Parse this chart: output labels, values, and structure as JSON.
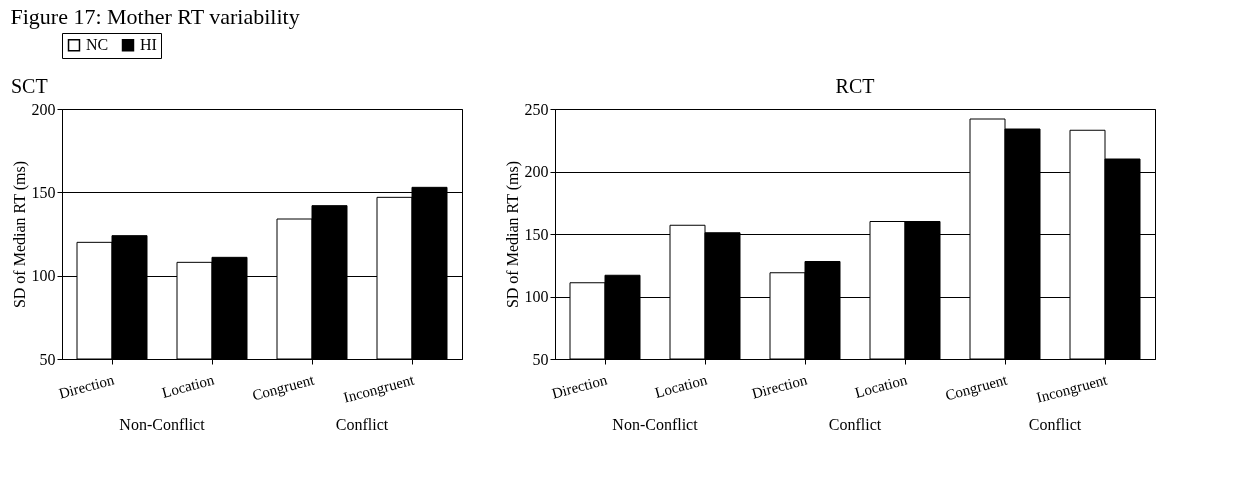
{
  "chart_data": [
    {
      "type": "bar",
      "title": "Figure 17: Mother RT variability",
      "subtitle": "SCT",
      "ylabel": "SD of Median RT (ms)",
      "categories": [
        "Direction",
        "Location",
        "Congruent",
        "Incongruent"
      ],
      "series": [
        {
          "name": "NC",
          "color": "#ffffff",
          "values": [
            120,
            108,
            134,
            147
          ]
        },
        {
          "name": "HI",
          "color": "#000000",
          "values": [
            124,
            111,
            142,
            153
          ]
        }
      ],
      "ylim": [
        50,
        200
      ],
      "yticks": [
        50,
        100,
        150,
        200
      ],
      "grid": "y",
      "legend": "top",
      "annotations": [
        "Non-Conflict",
        "Conflict"
      ]
    },
    {
      "type": "bar",
      "title": "RCT",
      "ylabel": "SD of Median RT (ms)",
      "categories": [
        "Direction",
        "Location",
        "Direction",
        "Location",
        "Congruent",
        "Incongruent"
      ],
      "series": [
        {
          "name": "NC",
          "color": "#ffffff",
          "values": [
            111,
            157,
            119,
            160,
            242,
            233
          ]
        },
        {
          "name": "HI",
          "color": "#000000",
          "values": [
            117,
            151,
            128,
            160,
            234,
            210
          ]
        }
      ],
      "ylim": [
        50,
        250
      ],
      "yticks": [
        50,
        100,
        150,
        200,
        250
      ],
      "grid": "y",
      "annotations": [
        "Non-Conflict",
        "Conflict",
        "Conflict"
      ]
    }
  ]
}
